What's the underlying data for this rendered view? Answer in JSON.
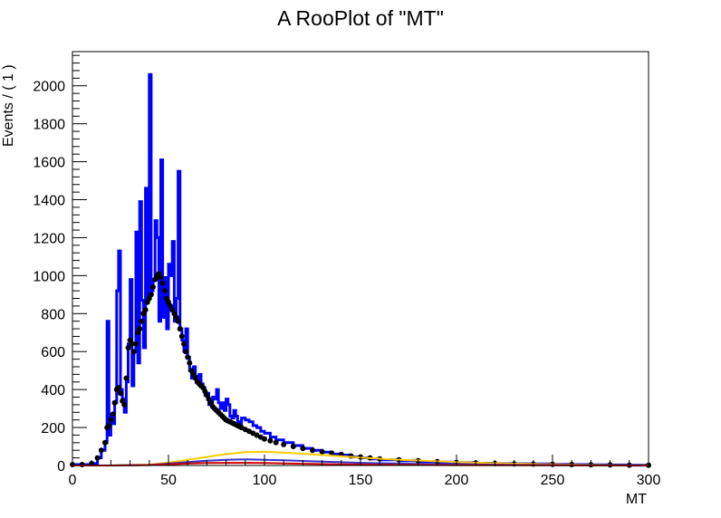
{
  "chart_data": {
    "type": "line",
    "title": "A RooPlot of \"MT\"",
    "xlabel": "MT",
    "ylabel": "Events / ( 1 )",
    "xlim": [
      0,
      300
    ],
    "ylim": [
      0,
      2180
    ],
    "x_ticks": [
      0,
      50,
      100,
      150,
      200,
      250,
      300
    ],
    "y_ticks": [
      0,
      200,
      400,
      600,
      800,
      1000,
      1200,
      1400,
      1600,
      1800,
      2000
    ],
    "grid": false,
    "legend": "none",
    "series": [
      {
        "color": "#0000ff",
        "style": "histogram",
        "x": [
          0,
          5,
          10,
          13,
          15,
          17,
          18,
          19,
          20,
          21,
          22,
          23,
          24,
          25,
          26,
          27,
          28,
          29,
          30,
          31,
          32,
          33,
          34,
          35,
          36,
          37,
          38,
          39,
          40,
          41,
          42,
          43,
          44,
          45,
          46,
          47,
          48,
          49,
          50,
          51,
          52,
          53,
          54,
          55,
          56,
          57,
          58,
          59,
          60,
          61,
          62,
          63,
          64,
          65,
          66,
          67,
          68,
          69,
          70,
          71,
          72,
          73,
          74,
          75,
          76,
          77,
          78,
          79,
          80,
          81,
          82,
          83,
          84,
          85,
          86,
          87,
          88,
          90,
          92,
          94,
          96,
          98,
          100,
          103,
          106,
          110,
          115,
          120,
          125,
          130,
          135,
          140,
          145,
          150,
          155,
          160,
          170,
          180,
          190,
          200,
          210,
          220,
          230,
          240,
          250,
          260,
          270,
          280,
          290,
          300
        ],
        "y": [
          5,
          5,
          10,
          40,
          80,
          120,
          760,
          160,
          260,
          220,
          330,
          920,
          1130,
          400,
          350,
          280,
          440,
          640,
          980,
          420,
          600,
          1230,
          540,
          1390,
          870,
          620,
          1460,
          880,
          2060,
          920,
          980,
          1290,
          1200,
          760,
          1610,
          780,
          990,
          720,
          1060,
          1000,
          1180,
          760,
          880,
          1550,
          720,
          660,
          600,
          720,
          570,
          500,
          460,
          520,
          470,
          440,
          480,
          430,
          410,
          370,
          380,
          320,
          330,
          360,
          350,
          400,
          330,
          300,
          330,
          290,
          350,
          320,
          260,
          250,
          290,
          260,
          230,
          220,
          250,
          240,
          230,
          210,
          200,
          180,
          170,
          150,
          135,
          120,
          105,
          90,
          80,
          70,
          60,
          55,
          45,
          40,
          35,
          30,
          25,
          20,
          18,
          15,
          12,
          10,
          9,
          8,
          6,
          5,
          4,
          3,
          2,
          1
        ]
      },
      {
        "color": "#000000",
        "style": "points",
        "x": [
          0,
          5,
          10,
          13,
          15,
          17,
          18,
          19,
          20,
          21,
          22,
          23,
          24,
          25,
          26,
          27,
          28,
          29,
          30,
          31,
          32,
          33,
          34,
          35,
          36,
          37,
          38,
          39,
          40,
          41,
          42,
          43,
          44,
          45,
          46,
          47,
          48,
          49,
          50,
          51,
          52,
          53,
          54,
          55,
          56,
          57,
          58,
          59,
          60,
          61,
          62,
          63,
          64,
          65,
          66,
          67,
          68,
          69,
          70,
          71,
          72,
          73,
          74,
          75,
          76,
          77,
          78,
          79,
          80,
          81,
          82,
          83,
          84,
          85,
          86,
          87,
          88,
          90,
          92,
          94,
          96,
          98,
          100,
          103,
          106,
          110,
          115,
          120,
          125,
          130,
          135,
          140,
          145,
          150,
          155,
          160,
          170,
          180,
          190,
          200,
          210,
          220,
          230,
          240,
          250,
          260,
          270,
          280,
          290,
          300
        ],
        "y": [
          5,
          5,
          10,
          40,
          80,
          120,
          200,
          210,
          240,
          270,
          330,
          400,
          410,
          380,
          340,
          320,
          460,
          620,
          660,
          640,
          600,
          640,
          700,
          720,
          760,
          800,
          820,
          860,
          880,
          900,
          940,
          980,
          1000,
          1010,
          990,
          960,
          920,
          880,
          860,
          840,
          820,
          800,
          780,
          760,
          720,
          680,
          640,
          600,
          570,
          540,
          500,
          480,
          460,
          440,
          430,
          420,
          410,
          390,
          370,
          350,
          330,
          310,
          300,
          290,
          280,
          270,
          260,
          250,
          240,
          235,
          230,
          225,
          220,
          215,
          210,
          205,
          200,
          190,
          180,
          170,
          160,
          150,
          140,
          130,
          120,
          110,
          100,
          90,
          80,
          72,
          65,
          58,
          50,
          45,
          40,
          35,
          30,
          25,
          20,
          16,
          13,
          10,
          8,
          7,
          6,
          5,
          4,
          3,
          2,
          1
        ]
      },
      {
        "color": "#ffcc00",
        "style": "curve",
        "x": [
          0,
          20,
          40,
          50,
          60,
          70,
          80,
          90,
          100,
          110,
          120,
          130,
          140,
          150,
          160,
          170,
          180,
          200,
          220,
          240,
          260,
          280,
          300
        ],
        "y": [
          0,
          0,
          5,
          15,
          30,
          45,
          60,
          70,
          72,
          68,
          62,
          55,
          48,
          42,
          36,
          30,
          26,
          18,
          12,
          8,
          5,
          3,
          2
        ]
      },
      {
        "color": "#3333cc",
        "style": "curve",
        "x": [
          0,
          20,
          40,
          50,
          60,
          70,
          80,
          90,
          100,
          110,
          120,
          130,
          140,
          150,
          160,
          180,
          200,
          240,
          300
        ],
        "y": [
          0,
          0,
          3,
          10,
          18,
          25,
          30,
          32,
          30,
          27,
          24,
          20,
          17,
          14,
          12,
          8,
          6,
          3,
          1
        ]
      },
      {
        "color": "#cc0000",
        "style": "curve",
        "x": [
          0,
          20,
          40,
          50,
          60,
          70,
          80,
          90,
          100,
          110,
          120,
          140,
          160,
          200,
          300
        ],
        "y": [
          0,
          0,
          2,
          6,
          10,
          13,
          14,
          14,
          13,
          11,
          9,
          6,
          4,
          2,
          0
        ]
      }
    ]
  }
}
